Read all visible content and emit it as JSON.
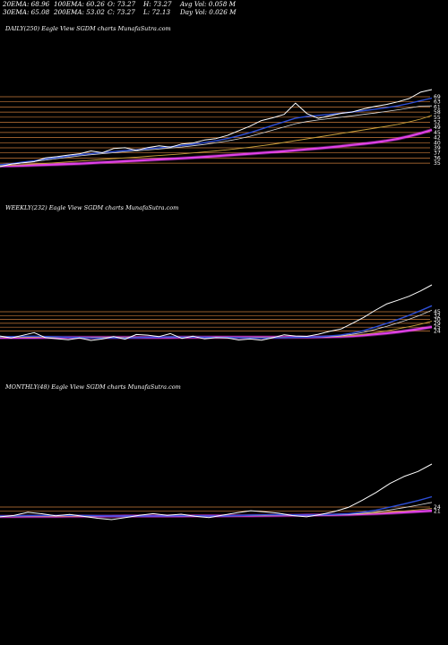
{
  "stats": {
    "ema20": "20EMA: 68.96",
    "ema100": "100EMA: 60.26",
    "open": "O: 73.27",
    "high": "H: 73.27",
    "avg_vol": "Avg Vol: 0.058  M",
    "ema30": "30EMA: 65.08",
    "ema200": "200EMA: 53.02",
    "close": "C: 73.27",
    "low": "L: 72.13",
    "day_vol": "Day Vol: 0.026  M"
  },
  "colors": {
    "background": "#000000",
    "price": "#ffffff",
    "level_lines": "#c87a3a",
    "ma_gold": "#c9a13c",
    "ma_light": "#d9d9d9",
    "ma_blue": "#2e4fd8",
    "ma_magenta": "#e040e8"
  },
  "chart_data": [
    {
      "type": "line",
      "title": "DAILY(250) Eagle  View  SGDM charts MunafaSutra.com",
      "price_labels": [
        "69",
        "63",
        "61",
        "58",
        "55",
        "52",
        "49",
        "45",
        "42",
        "40",
        "39",
        "37",
        "36",
        "35"
      ],
      "series": [
        {
          "role": "price",
          "values": [
            34.5,
            35.8,
            36.4,
            37.0,
            38.9,
            39.5,
            40.3,
            41.0,
            42.4,
            41.5,
            43.6,
            44.0,
            42.7,
            44.1,
            45.0,
            44.3,
            45.9,
            46.4,
            47.9,
            48.6,
            50.2,
            52.6,
            54.9,
            57.7,
            59.1,
            60.8,
            66.5,
            61.2,
            58.8,
            60.1,
            61.3,
            62.0,
            63.6,
            64.8,
            65.8,
            67.1,
            68.8,
            72.0,
            73.3
          ]
        },
        {
          "role": "ema20",
          "values": [
            35.4,
            36.0,
            36.8,
            37.5,
            38.3,
            39.0,
            39.8,
            40.5,
            41.1,
            41.6,
            42.1,
            42.6,
            43.0,
            43.5,
            44.0,
            44.5,
            45.1,
            45.8,
            46.6,
            47.5,
            48.6,
            50.0,
            51.6,
            53.4,
            55.3,
            57.1,
            58.9,
            59.8,
            60.3,
            60.8,
            61.4,
            62.0,
            62.7,
            63.4,
            64.2,
            65.1,
            66.3,
            67.7,
            69.0
          ]
        },
        {
          "role": "ema30",
          "values": [
            35.2,
            35.7,
            36.4,
            37.1,
            37.8,
            38.5,
            39.2,
            39.9,
            40.5,
            41.0,
            41.5,
            42.0,
            42.4,
            42.9,
            43.4,
            43.9,
            44.4,
            45.0,
            45.7,
            46.5,
            47.4,
            48.5,
            49.8,
            51.3,
            52.9,
            54.5,
            56.1,
            57.2,
            58.0,
            58.7,
            59.4,
            60.1,
            60.8,
            61.5,
            62.3,
            63.1,
            64.0,
            65.0,
            65.1
          ]
        },
        {
          "role": "ema100",
          "values": [
            35.0,
            35.2,
            35.5,
            35.8,
            36.1,
            36.5,
            36.9,
            37.3,
            37.7,
            38.1,
            38.5,
            38.9,
            39.3,
            39.7,
            40.1,
            40.5,
            40.9,
            41.4,
            41.9,
            42.4,
            43.0,
            43.6,
            44.3,
            45.0,
            45.8,
            46.7,
            47.6,
            48.5,
            49.4,
            50.3,
            51.2,
            52.1,
            53.0,
            53.9,
            54.8,
            55.8,
            57.0,
            58.4,
            60.3
          ]
        },
        {
          "role": "ema200",
          "values": [
            34.8,
            34.9,
            35.0,
            35.2,
            35.4,
            35.6,
            35.8,
            36.0,
            36.3,
            36.6,
            36.9,
            37.2,
            37.5,
            37.8,
            38.1,
            38.4,
            38.7,
            39.0,
            39.4,
            39.8,
            40.2,
            40.6,
            41.0,
            41.4,
            41.8,
            42.2,
            42.7,
            43.2,
            43.7,
            44.2,
            44.8,
            45.4,
            46.0,
            46.7,
            47.5,
            48.5,
            49.8,
            51.3,
            53.0
          ]
        }
      ]
    },
    {
      "type": "line",
      "title": "WEEKLY(232) Eagle  View  SGDM charts MunafaSutra.com",
      "price_labels": [
        "45",
        "32",
        "30",
        "29",
        "25",
        "24"
      ],
      "series": [
        {
          "role": "price",
          "values": [
            26.0,
            24.8,
            26.5,
            28.2,
            25.0,
            24.3,
            23.6,
            24.8,
            23.2,
            24.1,
            25.7,
            24.0,
            27.0,
            26.6,
            25.7,
            27.6,
            24.5,
            25.9,
            24.2,
            25.0,
            24.8,
            23.5,
            24.1,
            23.4,
            24.9,
            26.8,
            26.0,
            25.8,
            27.2,
            29.0,
            30.5,
            34.2,
            38.0,
            42.5,
            46.6,
            49.0,
            51.6,
            55.0,
            58.9
          ]
        },
        {
          "role": "ema20",
          "values": [
            25.6,
            25.6,
            25.8,
            25.9,
            25.7,
            25.5,
            25.2,
            25.1,
            24.8,
            24.7,
            24.8,
            24.7,
            25.0,
            25.2,
            25.3,
            25.5,
            25.3,
            25.4,
            25.2,
            25.1,
            25.1,
            24.9,
            24.8,
            24.7,
            24.8,
            25.0,
            25.2,
            25.3,
            25.5,
            26.0,
            26.7,
            27.9,
            29.5,
            31.7,
            34.1,
            36.6,
            39.3,
            42.3,
            45.5
          ]
        },
        {
          "role": "ema30",
          "values": [
            25.5,
            25.5,
            25.6,
            25.7,
            25.6,
            25.5,
            25.3,
            25.2,
            25.0,
            24.9,
            24.9,
            24.8,
            25.0,
            25.1,
            25.2,
            25.3,
            25.2,
            25.3,
            25.1,
            25.1,
            25.1,
            24.9,
            24.9,
            24.8,
            24.9,
            25.0,
            25.1,
            25.2,
            25.3,
            25.7,
            26.2,
            27.1,
            28.4,
            30.2,
            32.2,
            34.4,
            36.8,
            39.5,
            42.6
          ]
        },
        {
          "role": "ema100",
          "values": [
            25.2,
            25.2,
            25.2,
            25.3,
            25.3,
            25.2,
            25.2,
            25.2,
            25.1,
            25.1,
            25.1,
            25.1,
            25.1,
            25.2,
            25.2,
            25.2,
            25.2,
            25.2,
            25.2,
            25.2,
            25.2,
            25.1,
            25.1,
            25.1,
            25.1,
            25.2,
            25.2,
            25.3,
            25.4,
            25.6,
            25.9,
            26.4,
            27.1,
            28.1,
            29.3,
            30.6,
            32.0,
            33.6,
            35.5
          ]
        },
        {
          "role": "ema200",
          "values": [
            25.0,
            25.0,
            25.0,
            25.0,
            25.1,
            25.1,
            25.1,
            25.1,
            25.1,
            25.1,
            25.1,
            25.1,
            25.1,
            25.1,
            25.1,
            25.1,
            25.2,
            25.2,
            25.2,
            25.2,
            25.2,
            25.2,
            25.2,
            25.2,
            25.2,
            25.2,
            25.3,
            25.3,
            25.4,
            25.5,
            25.7,
            26.0,
            26.5,
            27.1,
            27.8,
            28.6,
            29.6,
            30.7,
            31.9
          ]
        }
      ]
    },
    {
      "type": "line",
      "title": "MONTHLY(48) Eagle  View  SGDM charts MunafaSutra.com",
      "price_labels": [
        "24",
        "21"
      ],
      "series": [
        {
          "role": "price",
          "values": [
            22.5,
            23.4,
            25.5,
            24.5,
            23.2,
            24.1,
            22.8,
            21.5,
            20.6,
            22.0,
            23.5,
            24.6,
            23.5,
            24.2,
            22.9,
            21.9,
            23.6,
            25.2,
            26.6,
            25.8,
            24.9,
            23.3,
            22.5,
            24.0,
            26.0,
            28.8,
            33.6,
            38.9,
            45.0,
            49.6,
            53.0,
            58.0
          ]
        },
        {
          "role": "ema20",
          "values": [
            23.0,
            23.1,
            23.3,
            23.4,
            23.4,
            23.5,
            23.4,
            23.2,
            23.0,
            23.0,
            23.0,
            23.1,
            23.1,
            23.2,
            23.2,
            23.0,
            23.1,
            23.3,
            23.6,
            23.8,
            23.9,
            23.8,
            23.7,
            23.8,
            24.1,
            24.6,
            25.6,
            27.0,
            29.0,
            31.1,
            33.4,
            36.0
          ]
        },
        {
          "role": "ema30",
          "values": [
            22.9,
            23.0,
            23.1,
            23.2,
            23.2,
            23.3,
            23.2,
            23.1,
            23.0,
            23.0,
            23.0,
            23.1,
            23.1,
            23.1,
            23.1,
            23.0,
            23.1,
            23.2,
            23.4,
            23.5,
            23.6,
            23.6,
            23.5,
            23.6,
            23.8,
            24.1,
            24.8,
            25.8,
            27.1,
            28.6,
            30.3,
            32.2
          ]
        },
        {
          "role": "ema100",
          "values": [
            22.8,
            22.8,
            22.9,
            22.9,
            22.9,
            23.0,
            23.0,
            23.0,
            23.0,
            23.0,
            23.0,
            23.0,
            23.1,
            23.1,
            23.1,
            23.1,
            23.1,
            23.2,
            23.3,
            23.4,
            23.5,
            23.6,
            23.7,
            23.8,
            24.0,
            24.2,
            24.6,
            25.1,
            25.7,
            26.4,
            27.2,
            28.1
          ]
        },
        {
          "role": "ema200",
          "values": [
            22.7,
            22.7,
            22.8,
            22.8,
            22.8,
            22.9,
            22.9,
            22.9,
            22.9,
            23.0,
            23.0,
            23.0,
            23.0,
            23.0,
            23.1,
            23.1,
            23.1,
            23.2,
            23.2,
            23.3,
            23.4,
            23.5,
            23.6,
            23.7,
            23.8,
            24.0,
            24.3,
            24.6,
            25.0,
            25.5,
            26.0,
            26.6
          ]
        }
      ]
    }
  ]
}
